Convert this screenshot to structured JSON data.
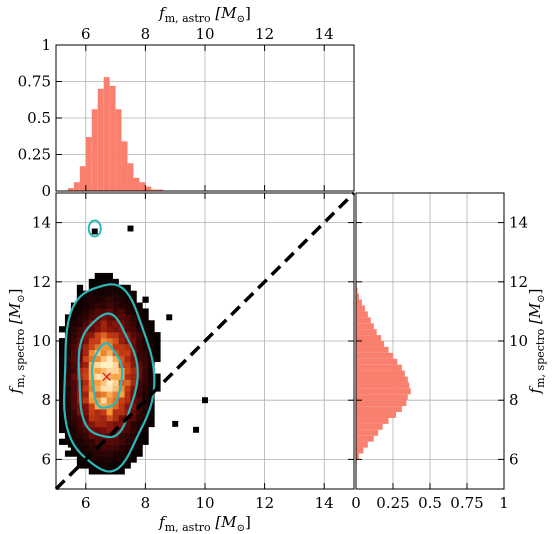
{
  "chart_data": [
    {
      "panel": "top-marginal",
      "type": "bar",
      "xlabel_main": "f",
      "xlabel_sub": "m, astro",
      "xlabel_unit": "[M",
      "xlabel_unit_sub": "⊙",
      "xlabel_close": "]",
      "xlim": [
        5,
        15
      ],
      "ylim": [
        0,
        1
      ],
      "xticks": [
        "6",
        "8",
        "10",
        "12",
        "14"
      ],
      "yticks": [
        "0",
        "0.25",
        "0.5",
        "0.75",
        "1"
      ],
      "bin_width": 0.2,
      "x": [
        5.5,
        5.7,
        5.9,
        6.1,
        6.3,
        6.5,
        6.7,
        6.9,
        7.1,
        7.3,
        7.5,
        7.7,
        7.9,
        8.1,
        8.3,
        8.5
      ],
      "values": [
        0.02,
        0.06,
        0.17,
        0.37,
        0.56,
        0.7,
        0.78,
        0.72,
        0.56,
        0.34,
        0.19,
        0.09,
        0.06,
        0.03,
        0.01,
        0.01
      ],
      "color": "#f9806f",
      "grid": true
    },
    {
      "panel": "main-2d-histogram",
      "type": "heatmap",
      "xlabel_main": "f",
      "xlabel_sub": "m, astro",
      "ylabel_main": "f",
      "ylabel_sub": "m, spectro",
      "unit": "[M",
      "unit_sub": "⊙",
      "unit_close": "]",
      "xlim": [
        5,
        15
      ],
      "ylim": [
        5,
        15
      ],
      "xticks": [
        "6",
        "8",
        "10",
        "12",
        "14"
      ],
      "yticks": [
        "6",
        "8",
        "10",
        "12",
        "14"
      ],
      "peak_marker": {
        "x": 6.7,
        "y": 8.8,
        "symbol": "×",
        "color": "#e8112d"
      },
      "diagonal": {
        "from": [
          5,
          5
        ],
        "to": [
          15,
          15
        ],
        "style": "dashed",
        "color": "#000000"
      },
      "density_center": {
        "x": 6.7,
        "y": 8.8
      },
      "density_spread": {
        "sx": 0.62,
        "sy": 1.2,
        "rho": 0.05
      },
      "contour_levels_axes": [
        {
          "sx": 0.5,
          "sy": 1.08
        },
        {
          "sx": 0.98,
          "sy": 2.08
        },
        {
          "sx": 1.5,
          "sy": 3.15
        }
      ],
      "contour_color": "#2ab8ba",
      "grid": true
    },
    {
      "panel": "right-marginal",
      "type": "bar",
      "orientation": "horizontal",
      "xlim": [
        0,
        1
      ],
      "ylim": [
        5,
        15
      ],
      "xticks": [
        "0",
        "0.25",
        "0.5",
        "0.75",
        "1"
      ],
      "yticks": [
        "6",
        "8",
        "10",
        "12",
        "14"
      ],
      "ylabel_main": "f",
      "ylabel_sub": "m, spectro",
      "bin_width": 0.2,
      "y": [
        5.9,
        6.1,
        6.3,
        6.5,
        6.7,
        6.9,
        7.1,
        7.3,
        7.5,
        7.7,
        7.9,
        8.1,
        8.3,
        8.5,
        8.7,
        8.9,
        9.1,
        9.3,
        9.5,
        9.7,
        9.9,
        10.1,
        10.3,
        10.5,
        10.7,
        10.9,
        11.1,
        11.3,
        11.5,
        11.7,
        11.9
      ],
      "values": [
        0.005,
        0.02,
        0.05,
        0.08,
        0.12,
        0.15,
        0.18,
        0.22,
        0.27,
        0.31,
        0.34,
        0.35,
        0.37,
        0.36,
        0.35,
        0.33,
        0.31,
        0.28,
        0.25,
        0.22,
        0.19,
        0.17,
        0.14,
        0.12,
        0.1,
        0.08,
        0.06,
        0.04,
        0.02,
        0.01,
        0.005
      ],
      "color": "#f9806f",
      "grid": true
    }
  ]
}
